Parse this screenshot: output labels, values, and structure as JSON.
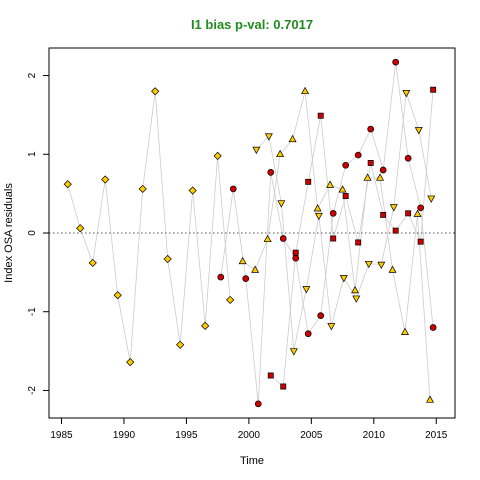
{
  "chart_data": {
    "type": "scatter",
    "title": "I1 bias p-val: 0.7017",
    "title_color": "#228B22",
    "xlabel": "Time",
    "ylabel": "Index OSA residuals",
    "xlim": [
      1984,
      2016.5
    ],
    "ylim": [
      -2.35,
      2.35
    ],
    "xticks": [
      1985,
      1990,
      1995,
      2000,
      2005,
      2010,
      2015
    ],
    "yticks": [
      -2,
      -1,
      0,
      1,
      2
    ],
    "reference_line": {
      "y": 0,
      "style": "dotted",
      "color": "#555555"
    },
    "connector_color": "#cccccc",
    "marker_fill": {
      "yellow": "#ffcc00",
      "red": "#cc0000"
    },
    "series": [
      {
        "marker": "diamond",
        "color": "yellow",
        "points": [
          {
            "x": 1985.5,
            "y": 0.62
          },
          {
            "x": 1986.5,
            "y": 0.06
          },
          {
            "x": 1987.5,
            "y": -0.38
          },
          {
            "x": 1988.5,
            "y": 0.68
          },
          {
            "x": 1989.5,
            "y": -0.79
          },
          {
            "x": 1990.5,
            "y": -1.64
          },
          {
            "x": 1991.5,
            "y": 0.56
          },
          {
            "x": 1992.5,
            "y": 1.8
          },
          {
            "x": 1993.5,
            "y": -0.33
          },
          {
            "x": 1994.5,
            "y": -1.42
          },
          {
            "x": 1995.5,
            "y": 0.54
          },
          {
            "x": 1996.5,
            "y": -1.18
          },
          {
            "x": 1997.5,
            "y": 0.98
          },
          {
            "x": 1998.5,
            "y": -0.85
          }
        ]
      },
      {
        "marker": "circle",
        "color": "red",
        "points": [
          {
            "x": 1997.75,
            "y": -0.56
          },
          {
            "x": 1998.75,
            "y": 0.56
          },
          {
            "x": 1999.75,
            "y": -0.58
          },
          {
            "x": 2000.75,
            "y": -2.17
          },
          {
            "x": 2001.75,
            "y": 0.77
          },
          {
            "x": 2002.75,
            "y": -0.07
          },
          {
            "x": 2003.75,
            "y": -0.32
          },
          {
            "x": 2004.75,
            "y": -1.28
          },
          {
            "x": 2005.75,
            "y": -1.05
          },
          {
            "x": 2006.75,
            "y": 0.25
          },
          {
            "x": 2007.75,
            "y": 0.86
          },
          {
            "x": 2008.75,
            "y": 0.99
          },
          {
            "x": 2009.75,
            "y": 1.32
          },
          {
            "x": 2010.75,
            "y": 0.8
          },
          {
            "x": 2011.75,
            "y": 2.17
          },
          {
            "x": 2012.75,
            "y": 0.95
          },
          {
            "x": 2013.75,
            "y": 0.32
          },
          {
            "x": 2014.75,
            "y": -1.2
          }
        ]
      },
      {
        "marker": "square",
        "color": "red",
        "points": [
          {
            "x": 2001.75,
            "y": -1.81
          },
          {
            "x": 2002.75,
            "y": -1.95
          },
          {
            "x": 2003.75,
            "y": -0.25
          },
          {
            "x": 2004.75,
            "y": 0.65
          },
          {
            "x": 2005.75,
            "y": 1.49
          },
          {
            "x": 2006.75,
            "y": -0.07
          },
          {
            "x": 2007.75,
            "y": 0.47
          },
          {
            "x": 2008.75,
            "y": -0.12
          },
          {
            "x": 2009.75,
            "y": 0.89
          },
          {
            "x": 2010.75,
            "y": 0.23
          },
          {
            "x": 2011.75,
            "y": 0.03
          },
          {
            "x": 2012.75,
            "y": 0.25
          },
          {
            "x": 2013.75,
            "y": -0.11
          },
          {
            "x": 2014.75,
            "y": 1.82
          }
        ]
      },
      {
        "marker": "triangle-down",
        "color": "yellow",
        "points": [
          {
            "x": 2000.6,
            "y": 1.06
          },
          {
            "x": 2001.6,
            "y": 1.23
          },
          {
            "x": 2002.6,
            "y": 0.38
          },
          {
            "x": 2003.6,
            "y": -1.5
          },
          {
            "x": 2004.6,
            "y": -0.71
          },
          {
            "x": 2005.6,
            "y": 0.22
          },
          {
            "x": 2006.6,
            "y": -1.18
          },
          {
            "x": 2007.6,
            "y": -0.57
          },
          {
            "x": 2008.6,
            "y": -0.83
          },
          {
            "x": 2009.6,
            "y": -0.39
          },
          {
            "x": 2010.6,
            "y": -0.4
          },
          {
            "x": 2011.6,
            "y": 0.33
          },
          {
            "x": 2012.6,
            "y": 1.78
          },
          {
            "x": 2013.6,
            "y": 1.31
          },
          {
            "x": 2014.6,
            "y": 0.44
          }
        ]
      },
      {
        "marker": "triangle-up",
        "color": "yellow",
        "points": [
          {
            "x": 1999.5,
            "y": -0.36
          },
          {
            "x": 2000.5,
            "y": -0.47
          },
          {
            "x": 2001.5,
            "y": -0.08
          },
          {
            "x": 2002.5,
            "y": 1.0
          },
          {
            "x": 2003.5,
            "y": 1.19
          },
          {
            "x": 2004.5,
            "y": 1.8
          },
          {
            "x": 2005.5,
            "y": 0.31
          },
          {
            "x": 2006.5,
            "y": 0.61
          },
          {
            "x": 2007.5,
            "y": 0.55
          },
          {
            "x": 2008.5,
            "y": -0.73
          },
          {
            "x": 2009.5,
            "y": 0.7
          },
          {
            "x": 2010.5,
            "y": 0.7
          },
          {
            "x": 2011.5,
            "y": -0.47
          },
          {
            "x": 2012.5,
            "y": -1.26
          },
          {
            "x": 2013.5,
            "y": 0.24
          },
          {
            "x": 2014.5,
            "y": -2.12
          }
        ]
      }
    ]
  }
}
